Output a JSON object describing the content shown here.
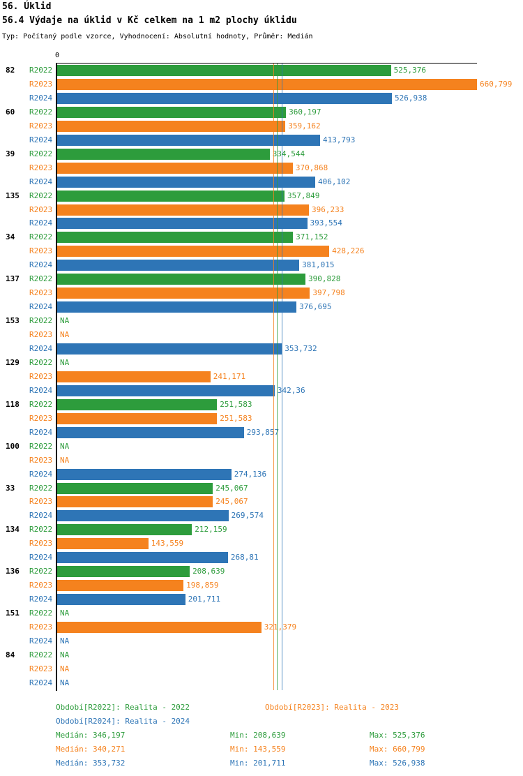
{
  "header": {
    "title": "56. Úklid",
    "subtitle": "56.4 Výdaje na úklid v Kč celkem na 1 m2 plochy úklidu",
    "meta": "Typ: Počítaný podle vzorce, Vyhodnocení: Absolutní hodnoty, Průměr: Medián"
  },
  "axis": {
    "zero_label": "0"
  },
  "chart_data": {
    "type": "bar",
    "orientation": "horizontal",
    "title": "56.4 Výdaje na úklid v Kč celkem na 1 m2 plochy úklidu",
    "xlim": [
      0,
      660.799
    ],
    "grid": false,
    "na_label": "NA",
    "series": [
      "R2022",
      "R2023",
      "R2024"
    ],
    "colors": {
      "R2022": "#2d9c3c",
      "R2023": "#f5821e",
      "R2024": "#2e75b6"
    },
    "medians": [
      {
        "series": "R2022",
        "value": 346.197
      },
      {
        "series": "R2023",
        "value": 340.271
      },
      {
        "series": "R2024",
        "value": 353.732
      }
    ],
    "groups": [
      {
        "id": "82",
        "values": [
          525.376,
          660.799,
          526.938
        ],
        "labels": [
          "525,376",
          "660,799",
          "526,938"
        ]
      },
      {
        "id": "60",
        "values": [
          360.197,
          359.162,
          413.793
        ],
        "labels": [
          "360,197",
          "359,162",
          "413,793"
        ]
      },
      {
        "id": "39",
        "values": [
          334.544,
          370.868,
          406.102
        ],
        "labels": [
          "334,544",
          "370,868",
          "406,102"
        ]
      },
      {
        "id": "135",
        "values": [
          357.849,
          396.233,
          393.554
        ],
        "labels": [
          "357,849",
          "396,233",
          "393,554"
        ]
      },
      {
        "id": "34",
        "values": [
          371.152,
          428.226,
          381.015
        ],
        "labels": [
          "371,152",
          "428,226",
          "381,015"
        ]
      },
      {
        "id": "137",
        "values": [
          390.828,
          397.798,
          376.695
        ],
        "labels": [
          "390,828",
          "397,798",
          "376,695"
        ]
      },
      {
        "id": "153",
        "values": [
          null,
          null,
          353.732
        ],
        "labels": [
          "NA",
          "NA",
          "353,732"
        ]
      },
      {
        "id": "129",
        "values": [
          null,
          241.171,
          342.36
        ],
        "labels": [
          "NA",
          "241,171",
          "342,36"
        ]
      },
      {
        "id": "118",
        "values": [
          251.583,
          251.583,
          293.857
        ],
        "labels": [
          "251,583",
          "251,583",
          "293,857"
        ]
      },
      {
        "id": "100",
        "values": [
          null,
          null,
          274.136
        ],
        "labels": [
          "NA",
          "NA",
          "274,136"
        ]
      },
      {
        "id": "33",
        "values": [
          245.067,
          245.067,
          269.574
        ],
        "labels": [
          "245,067",
          "245,067",
          "269,574"
        ]
      },
      {
        "id": "134",
        "values": [
          212.159,
          143.559,
          268.81
        ],
        "labels": [
          "212,159",
          "143,559",
          "268,81"
        ]
      },
      {
        "id": "136",
        "values": [
          208.639,
          198.859,
          201.711
        ],
        "labels": [
          "208,639",
          "198,859",
          "201,711"
        ]
      },
      {
        "id": "151",
        "values": [
          null,
          321.379,
          null
        ],
        "labels": [
          "NA",
          "321,379",
          "NA"
        ]
      },
      {
        "id": "84",
        "values": [
          null,
          null,
          null
        ],
        "labels": [
          "NA",
          "NA",
          "NA"
        ]
      }
    ]
  },
  "legend": {
    "r2022": "Období[R2022]: Realita - 2022",
    "r2023": "Období[R2023]: Realita - 2023",
    "r2024": "Období[R2024]: Realita - 2024"
  },
  "stats": {
    "r2022": {
      "median": "Medián: 346,197",
      "min": "Min: 208,639",
      "max": "Max: 525,376"
    },
    "r2023": {
      "median": "Medián: 340,271",
      "min": "Min: 143,559",
      "max": "Max: 660,799"
    },
    "r2024": {
      "median": "Medián: 353,732",
      "min": "Min: 201,711",
      "max": "Max: 526,938"
    }
  }
}
